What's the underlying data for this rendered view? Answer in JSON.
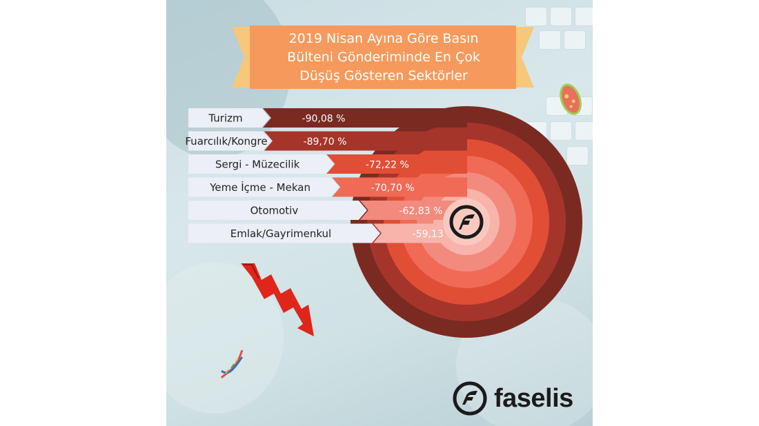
{
  "title_lines": [
    "2019 Nisan Ayına Göre Basın",
    "Bülteni Gönderiminde En Çok",
    "Düşüş Gösteren Sektörler"
  ],
  "brand": {
    "name": "faselis"
  },
  "colors": {
    "banner": "#f59a5c",
    "banner_tail": "#f7c77a",
    "label_bg": "#eceff7",
    "ring_colors": [
      "#7b2a22",
      "#a5352a",
      "#e04e36",
      "#f06a55",
      "#f28a7e",
      "#f8b3aa"
    ]
  },
  "chart_data": {
    "type": "bar",
    "title": "2019 Nisan Ayına Göre Basın Bülteni Gönderiminde En Çok Düşüş Gösteren Sektörler",
    "categories": [
      "Turizm",
      "Fuarcılık/Kongre",
      "Sergi - Müzecilik",
      "Yeme İçme - Mekan",
      "Otomotiv",
      "Emlak/Gayrimenkul"
    ],
    "values": [
      -90.08,
      -89.7,
      -72.22,
      -70.7,
      -62.83,
      -59.13
    ],
    "value_labels": [
      "-90,08 %",
      "-89,70 %",
      "-72,22 %",
      "-70,70 %",
      "-62,83 %",
      "-59,13 %"
    ],
    "unit": "%"
  }
}
